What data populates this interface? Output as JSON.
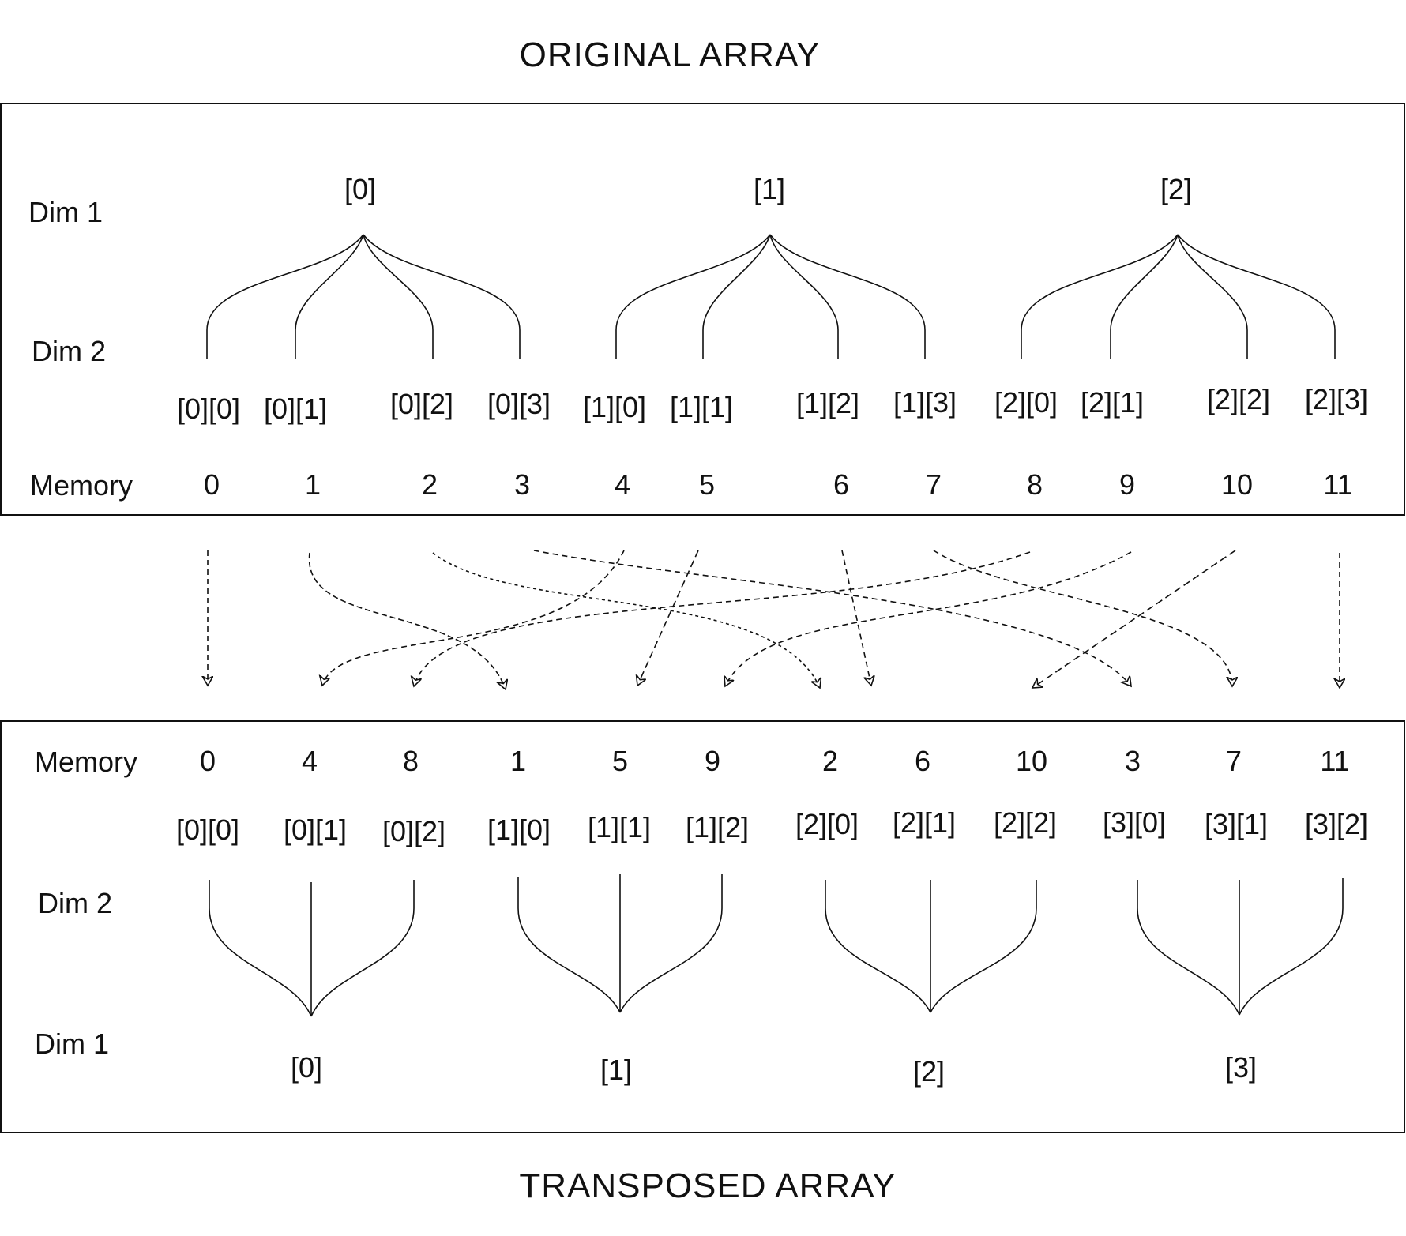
{
  "titles": {
    "original": "ORIGINAL ARRAY",
    "transposed": "TRANSPOSED ARRAY"
  },
  "original": {
    "dim1_label": "Dim 1",
    "dim2_label": "Dim 2",
    "memory_label": "Memory",
    "groups": [
      "[0]",
      "[1]",
      "[2]"
    ],
    "elements": [
      "[0][0]",
      "[0][1]",
      "[0][2]",
      "[0][3]",
      "[1][0]",
      "[1][1]",
      "[1][2]",
      "[1][3]",
      "[2][0]",
      "[2][1]",
      "[2][2]",
      "[2][3]"
    ],
    "memory": [
      "0",
      "1",
      "2",
      "3",
      "4",
      "5",
      "6",
      "7",
      "8",
      "9",
      "10",
      "11"
    ]
  },
  "transposed": {
    "dim1_label": "Dim 1",
    "dim2_label": "Dim 2",
    "memory_label": "Memory",
    "groups": [
      "[0]",
      "[1]",
      "[2]",
      "[3]"
    ],
    "elements": [
      "[0][0]",
      "[0][1]",
      "[0][2]",
      "[1][0]",
      "[1][1]",
      "[1][2]",
      "[2][0]",
      "[2][1]",
      "[2][2]",
      "[3][0]",
      "[3][1]",
      "[3][2]"
    ],
    "memory": [
      "0",
      "4",
      "8",
      "1",
      "5",
      "9",
      "2",
      "6",
      "10",
      "3",
      "7",
      "11"
    ]
  }
}
